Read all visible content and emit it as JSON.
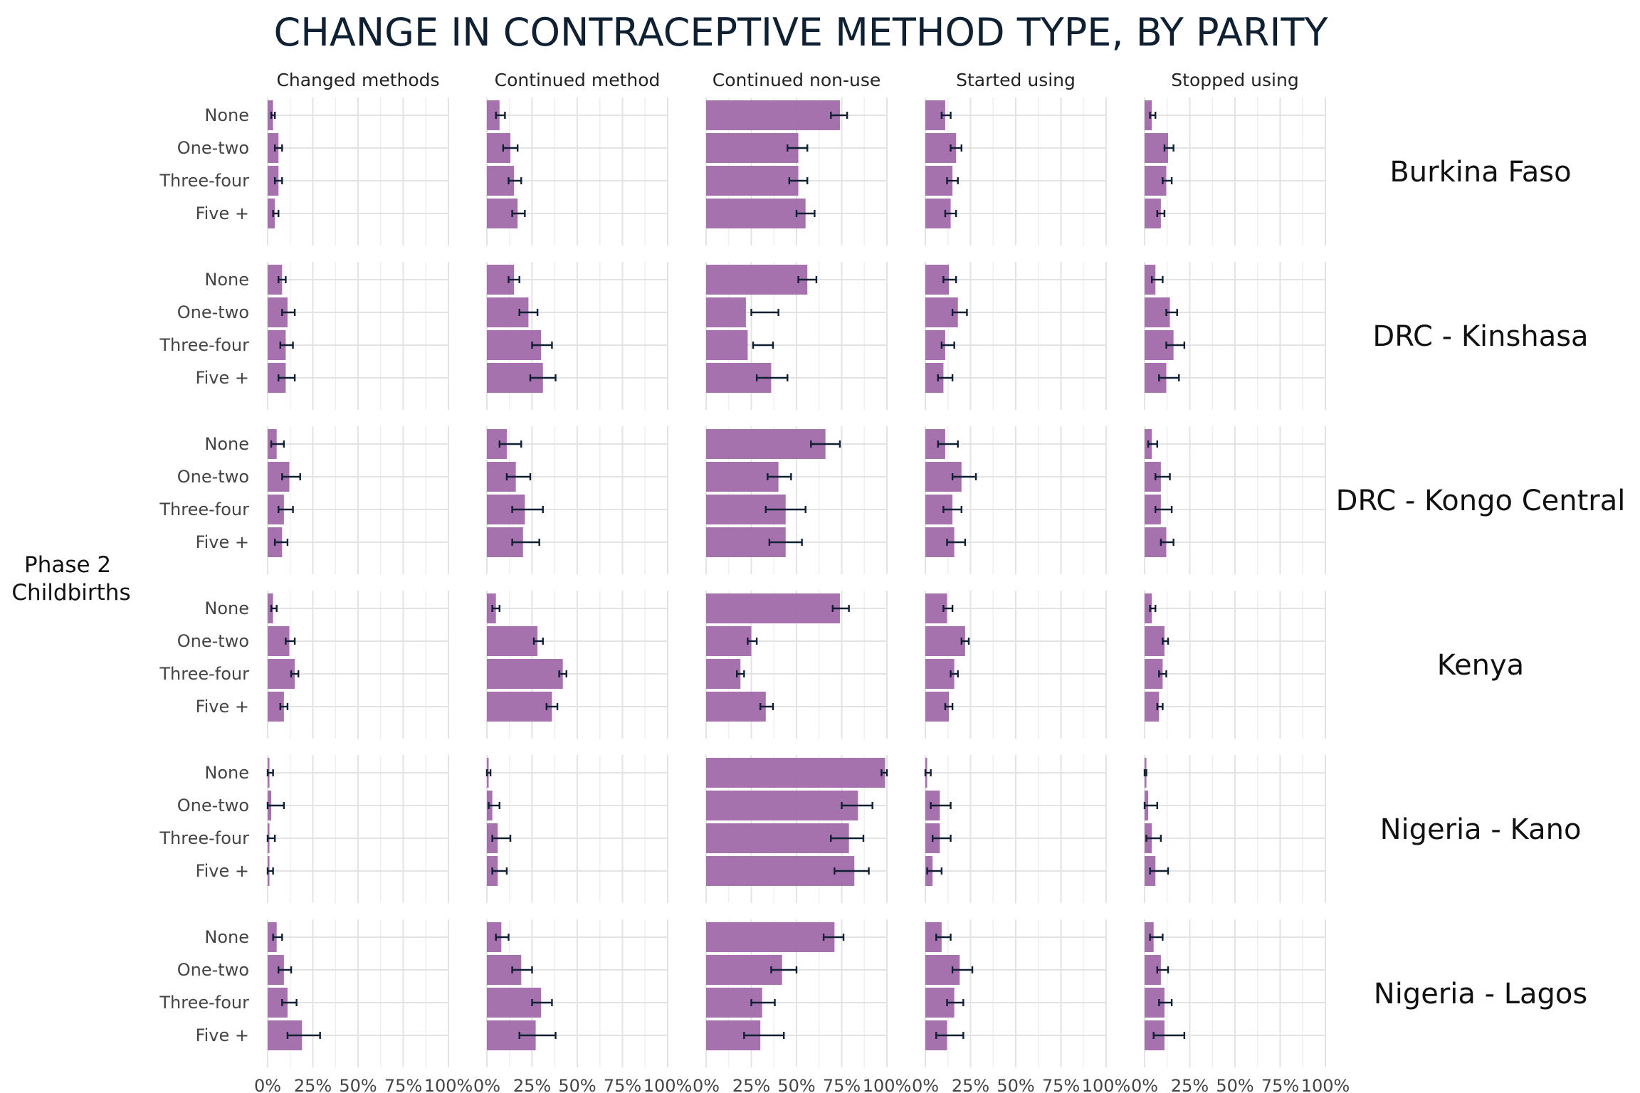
{
  "chart_data": {
    "type": "bar",
    "title": "CHANGE IN CONTRACEPTIVE METHOD TYPE, BY PARITY",
    "ylabel": [
      "Phase 2",
      "Childbirths"
    ],
    "xlim": [
      0,
      100
    ],
    "x_ticks": [
      "0%",
      "25%",
      "50%",
      "75%",
      "100%"
    ],
    "grid": true,
    "bar_color": "#a06aaa",
    "error_bar_color": "#0f2033",
    "columns": [
      "Changed methods",
      "Continued method",
      "Continued non-use",
      "Started using",
      "Stopped using"
    ],
    "categories": [
      "None",
      "One-two",
      "Three-four",
      "Five +"
    ],
    "rows": [
      {
        "name": "Burkina Faso",
        "values": [
          [
            3,
            6,
            6,
            4
          ],
          [
            7,
            13,
            15,
            17
          ],
          [
            74,
            51,
            51,
            55
          ],
          [
            11,
            17,
            15,
            14
          ],
          [
            4,
            13,
            12,
            9
          ]
        ],
        "errors": [
          [
            [
              2,
              4
            ],
            [
              4,
              8
            ],
            [
              4,
              8
            ],
            [
              3,
              6
            ]
          ],
          [
            [
              5,
              10
            ],
            [
              9,
              17
            ],
            [
              12,
              19
            ],
            [
              14,
              21
            ]
          ],
          [
            [
              69,
              78
            ],
            [
              45,
              56
            ],
            [
              46,
              56
            ],
            [
              50,
              60
            ]
          ],
          [
            [
              9,
              14
            ],
            [
              14,
              20
            ],
            [
              12,
              18
            ],
            [
              11,
              17
            ]
          ],
          [
            [
              3,
              6
            ],
            [
              11,
              16
            ],
            [
              10,
              15
            ],
            [
              7,
              11
            ]
          ]
        ]
      },
      {
        "name": "DRC - Kinshasa",
        "values": [
          [
            8,
            11,
            10,
            10
          ],
          [
            15,
            23,
            30,
            31
          ],
          [
            56,
            22,
            23,
            36
          ],
          [
            13,
            18,
            11,
            10
          ],
          [
            6,
            14,
            16,
            12
          ]
        ],
        "errors": [
          [
            [
              6,
              10
            ],
            [
              8,
              15
            ],
            [
              7,
              14
            ],
            [
              6,
              15
            ]
          ],
          [
            [
              12,
              18
            ],
            [
              18,
              28
            ],
            [
              25,
              36
            ],
            [
              24,
              38
            ]
          ],
          [
            [
              51,
              61
            ],
            [
              25,
              40
            ],
            [
              26,
              37
            ],
            [
              28,
              45
            ]
          ],
          [
            [
              10,
              17
            ],
            [
              15,
              23
            ],
            [
              9,
              16
            ],
            [
              7,
              15
            ]
          ],
          [
            [
              4,
              10
            ],
            [
              12,
              18
            ],
            [
              12,
              22
            ],
            [
              8,
              19
            ]
          ]
        ]
      },
      {
        "name": "DRC - Kongo Central",
        "values": [
          [
            5,
            12,
            9,
            8
          ],
          [
            11,
            16,
            21,
            20
          ],
          [
            66,
            40,
            44,
            44
          ],
          [
            11,
            20,
            15,
            16
          ],
          [
            4,
            9,
            9,
            12
          ]
        ],
        "errors": [
          [
            [
              2,
              9
            ],
            [
              8,
              18
            ],
            [
              6,
              14
            ],
            [
              4,
              11
            ]
          ],
          [
            [
              7,
              19
            ],
            [
              11,
              24
            ],
            [
              14,
              31
            ],
            [
              14,
              29
            ]
          ],
          [
            [
              58,
              74
            ],
            [
              34,
              47
            ],
            [
              33,
              55
            ],
            [
              35,
              53
            ]
          ],
          [
            [
              7,
              18
            ],
            [
              15,
              28
            ],
            [
              10,
              20
            ],
            [
              12,
              22
            ]
          ],
          [
            [
              2,
              7
            ],
            [
              6,
              14
            ],
            [
              6,
              15
            ],
            [
              9,
              16
            ]
          ]
        ]
      },
      {
        "name": "Kenya",
        "values": [
          [
            3,
            12,
            15,
            9
          ],
          [
            5,
            28,
            42,
            36
          ],
          [
            74,
            25,
            19,
            33
          ],
          [
            12,
            22,
            16,
            13
          ],
          [
            4,
            11,
            10,
            8
          ]
        ],
        "errors": [
          [
            [
              2,
              5
            ],
            [
              10,
              15
            ],
            [
              13,
              17
            ],
            [
              7,
              11
            ]
          ],
          [
            [
              3,
              7
            ],
            [
              26,
              31
            ],
            [
              40,
              44
            ],
            [
              33,
              39
            ]
          ],
          [
            [
              70,
              79
            ],
            [
              23,
              28
            ],
            [
              17,
              21
            ],
            [
              30,
              37
            ]
          ],
          [
            [
              10,
              15
            ],
            [
              20,
              24
            ],
            [
              14,
              18
            ],
            [
              11,
              15
            ]
          ],
          [
            [
              3,
              6
            ],
            [
              10,
              13
            ],
            [
              8,
              12
            ],
            [
              7,
              10
            ]
          ]
        ]
      },
      {
        "name": "Nigeria - Kano",
        "values": [
          [
            1,
            2,
            1,
            1
          ],
          [
            1,
            3,
            6,
            6
          ],
          [
            99,
            84,
            79,
            82
          ],
          [
            1,
            8,
            8,
            4
          ],
          [
            1,
            2,
            4,
            6
          ]
        ],
        "errors": [
          [
            [
              0,
              3
            ],
            [
              0,
              9
            ],
            [
              0,
              4
            ],
            [
              0,
              3
            ]
          ],
          [
            [
              0,
              2
            ],
            [
              1,
              7
            ],
            [
              3,
              13
            ],
            [
              3,
              11
            ]
          ],
          [
            [
              97,
              100
            ],
            [
              75,
              92
            ],
            [
              69,
              87
            ],
            [
              71,
              90
            ]
          ],
          [
            [
              0,
              3
            ],
            [
              3,
              14
            ],
            [
              4,
              14
            ],
            [
              1,
              9
            ]
          ],
          [
            [
              0,
              1
            ],
            [
              0,
              7
            ],
            [
              1,
              9
            ],
            [
              3,
              13
            ]
          ]
        ]
      },
      {
        "name": "Nigeria - Lagos",
        "values": [
          [
            5,
            9,
            11,
            19
          ],
          [
            8,
            19,
            30,
            27
          ],
          [
            71,
            42,
            31,
            30
          ],
          [
            9,
            19,
            16,
            12
          ],
          [
            5,
            9,
            11,
            11
          ]
        ],
        "errors": [
          [
            [
              3,
              8
            ],
            [
              6,
              13
            ],
            [
              8,
              16
            ],
            [
              11,
              29
            ]
          ],
          [
            [
              5,
              12
            ],
            [
              14,
              25
            ],
            [
              25,
              36
            ],
            [
              18,
              38
            ]
          ],
          [
            [
              65,
              76
            ],
            [
              36,
              50
            ],
            [
              25,
              38
            ],
            [
              21,
              43
            ]
          ],
          [
            [
              6,
              14
            ],
            [
              15,
              26
            ],
            [
              12,
              21
            ],
            [
              6,
              21
            ]
          ],
          [
            [
              3,
              10
            ],
            [
              7,
              13
            ],
            [
              8,
              15
            ],
            [
              5,
              22
            ]
          ]
        ]
      }
    ]
  }
}
